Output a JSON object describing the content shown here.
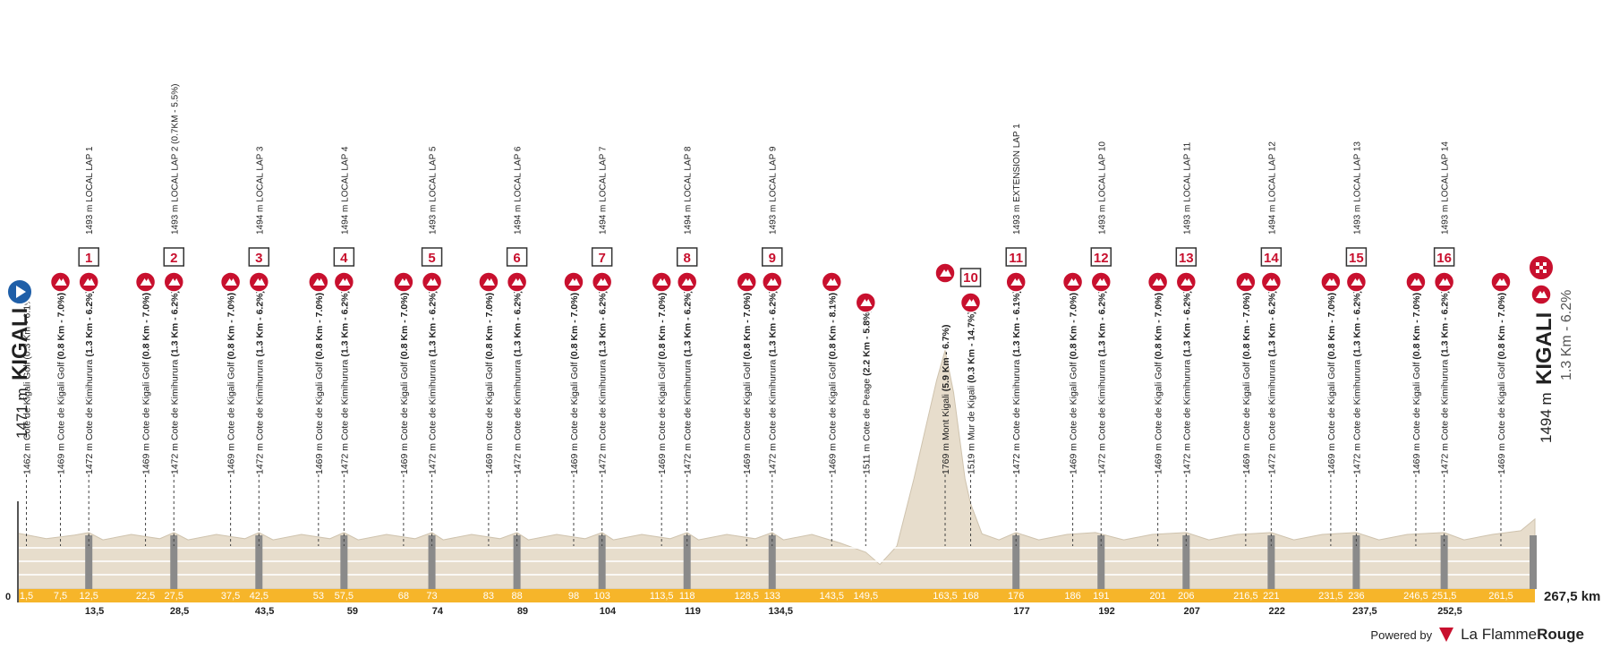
{
  "chart_data": {
    "type": "area",
    "title": "",
    "start": {
      "name": "KIGALI",
      "altitude": "1471 m",
      "note": "0.3Km - 6.1%"
    },
    "finish": {
      "name": "KIGALI",
      "altitude": "1494 m",
      "climb": "1.3 Km - 6.2%"
    },
    "total_distance": "267,5 km",
    "x_start_label": "0",
    "xlim": [
      0,
      267.5
    ],
    "elevation_profile": {
      "x": [
        0,
        5,
        10,
        12.5,
        15,
        20,
        25,
        27.5,
        30,
        35,
        40,
        42.5,
        45,
        50,
        55,
        57.5,
        60,
        65,
        70,
        73,
        75,
        80,
        85,
        88,
        90,
        95,
        100,
        103,
        105,
        110,
        115,
        118,
        120,
        125,
        130,
        133,
        135,
        140,
        145,
        149.5,
        152,
        155,
        158,
        160,
        162,
        163.5,
        165,
        167,
        168,
        170,
        173,
        176,
        180,
        185,
        190,
        195,
        200,
        206,
        210,
        215,
        221,
        225,
        230,
        236,
        240,
        245,
        251.5,
        255,
        260,
        265,
        267.5
      ],
      "y": [
        1471,
        1462,
        1468,
        1472,
        1460,
        1469,
        1462,
        1472,
        1460,
        1469,
        1462,
        1472,
        1460,
        1469,
        1462,
        1472,
        1460,
        1469,
        1462,
        1472,
        1460,
        1469,
        1462,
        1472,
        1460,
        1469,
        1462,
        1472,
        1460,
        1469,
        1462,
        1472,
        1460,
        1469,
        1462,
        1472,
        1460,
        1469,
        1455,
        1440,
        1420,
        1450,
        1560,
        1640,
        1720,
        1769,
        1700,
        1560,
        1519,
        1470,
        1460,
        1472,
        1460,
        1469,
        1472,
        1460,
        1469,
        1472,
        1460,
        1469,
        1472,
        1460,
        1469,
        1472,
        1460,
        1469,
        1472,
        1460,
        1469,
        1475,
        1494
      ]
    },
    "ylim": [
      1380,
      1800
    ],
    "km_markers_top": [
      "1,5",
      "7,5",
      "12,5",
      "22,5",
      "27,5",
      "37,5",
      "42,5",
      "53",
      "57,5",
      "68",
      "73",
      "83",
      "88",
      "98",
      "103",
      "113,5",
      "118",
      "128,5",
      "133",
      "143,5",
      "149,5",
      "163,5",
      "168",
      "176",
      "186",
      "191",
      "201",
      "206",
      "216,5",
      "221",
      "231,5",
      "236",
      "246,5",
      "251,5",
      "261,5"
    ],
    "km_markers_bottom": [
      "13,5",
      "28,5",
      "43,5",
      "59",
      "74",
      "89",
      "104",
      "119",
      "134,5",
      "177",
      "192",
      "207",
      "222",
      "237,5",
      "252,5"
    ],
    "climbs": [
      {
        "km": 1.5,
        "label": "1462 m Cote de Kigali Golf (0.3 Km - 6.1%)"
      },
      {
        "km": 7.5,
        "name": "1469 m Cote de Kigali Golf",
        "detail": "(0.8 Km - 7.0%)"
      },
      {
        "km": 12.5,
        "name": "1472 m Cote de Kimihurura",
        "detail": "(1.3 Km - 6.2%)"
      },
      {
        "km": 22.5,
        "name": "1469 m Cote de Kigali Golf",
        "detail": "(0.8 Km - 7.0%)"
      },
      {
        "km": 27.5,
        "name": "1472 m Cote de Kimihurura",
        "detail": "(1.3 Km - 6.2%)"
      },
      {
        "km": 37.5,
        "name": "1469 m Cote de Kigali Golf",
        "detail": "(0.8 Km - 7.0%)"
      },
      {
        "km": 42.5,
        "name": "1472 m Cote de Kimihurura",
        "detail": "(1.3 Km - 6.2%)"
      },
      {
        "km": 53,
        "name": "1469 m Cote de Kigali Golf",
        "detail": "(0.8 Km - 7.0%)"
      },
      {
        "km": 57.5,
        "name": "1472 m Cote de Kimihurura",
        "detail": "(1.3 Km - 6.2%)"
      },
      {
        "km": 68,
        "name": "1469 m Cote de Kigali Golf",
        "detail": "(0.8 Km - 7.0%)"
      },
      {
        "km": 73,
        "name": "1472 m Cote de Kimihurura",
        "detail": "(1.3 Km - 6.2%)"
      },
      {
        "km": 83,
        "name": "1469 m Cote de Kigali Golf",
        "detail": "(0.8 Km - 7.0%)"
      },
      {
        "km": 88,
        "name": "1472 m Cote de Kimihurura",
        "detail": "(1.3 Km - 6.2%)"
      },
      {
        "km": 98,
        "name": "1469 m Cote de Kigali Golf",
        "detail": "(0.8 Km - 7.0%)"
      },
      {
        "km": 103,
        "name": "1472 m Cote de Kimihurura",
        "detail": "(1.3 Km - 6.2%)"
      },
      {
        "km": 113.5,
        "name": "1469 m Cote de Kigali Golf",
        "detail": "(0.8 Km - 7.0%)"
      },
      {
        "km": 118,
        "name": "1472 m Cote de Kimihurura",
        "detail": "(1.3 Km - 6.2%)"
      },
      {
        "km": 128.5,
        "name": "1469 m Cote de Kigali Golf",
        "detail": "(0.8 Km - 7.0%)"
      },
      {
        "km": 133,
        "name": "1472 m Cote de Kimihurura",
        "detail": "(1.3 Km - 6.2%)"
      },
      {
        "km": 143.5,
        "name": "1469 m Cote de Kigali Golf",
        "detail": "(0.8 Km - 8.1%)"
      },
      {
        "km": 149.5,
        "name": "1511 m Cote de Peage",
        "detail": "(2.2 Km - 5.8%)"
      },
      {
        "km": 163.5,
        "name": "1769 m Mont Kigali",
        "detail": "(5.9 Km - 6.7%)"
      },
      {
        "km": 168,
        "name": "1519 m Mur de Kigali",
        "detail": "(0.3 Km - 14.7%)"
      },
      {
        "km": 176,
        "name": "1472 m Cote de Kimihurura",
        "detail": "(1.3 Km - 6.1%)"
      },
      {
        "km": 186,
        "name": "1469 m Cote de Kigali Golf",
        "detail": "(0.8 Km - 7.0%)"
      },
      {
        "km": 191,
        "name": "1472 m Cote de Kimihurura",
        "detail": "(1.3 Km - 6.2%)"
      },
      {
        "km": 201,
        "name": "1469 m Cote de Kigali Golf",
        "detail": "(0.8 Km - 7.0%)"
      },
      {
        "km": 206,
        "name": "1472 m Cote de Kimihurura",
        "detail": "(1.3 Km - 6.2%)"
      },
      {
        "km": 216.5,
        "name": "1469 m Cote de Kigali Golf",
        "detail": "(0.8 Km - 7.0%)"
      },
      {
        "km": 221,
        "name": "1472 m Cote de Kimihurura",
        "detail": "(1.3 Km - 6.2%)"
      },
      {
        "km": 231.5,
        "name": "1469 m Cote de Kigali Golf",
        "detail": "(0.8 Km - 7.0%)"
      },
      {
        "km": 236,
        "name": "1472 m Cote de Kimihurura",
        "detail": "(1.3 Km - 6.2%)"
      },
      {
        "km": 246.5,
        "name": "1469 m Cote de Kigali Golf",
        "detail": "(0.8 Km - 7.0%)"
      },
      {
        "km": 251.5,
        "name": "1472 m Cote de Kimihurura",
        "detail": "(1.3 Km - 6.2%)"
      },
      {
        "km": 261.5,
        "name": "1469 m Cote de Kigali Golf",
        "detail": "(0.8 Km - 7.0%)"
      }
    ],
    "laps": [
      {
        "num": "1",
        "km": 12.5,
        "label": "1493 m LOCAL LAP 1"
      },
      {
        "num": "2",
        "km": 27.5,
        "label": "1493 m LOCAL LAP 2 (0.7KM - 5.5%)"
      },
      {
        "num": "3",
        "km": 42.5,
        "label": "1494 m LOCAL LAP 3"
      },
      {
        "num": "4",
        "km": 57.5,
        "label": "1494 m LOCAL LAP 4"
      },
      {
        "num": "5",
        "km": 73,
        "label": "1493 m LOCAL LAP 5"
      },
      {
        "num": "6",
        "km": 88,
        "label": "1494 m LOCAL LAP 6"
      },
      {
        "num": "7",
        "km": 103,
        "label": "1494 m LOCAL LAP 7"
      },
      {
        "num": "8",
        "km": 118,
        "label": "1494 m LOCAL LAP 8"
      },
      {
        "num": "9",
        "km": 133,
        "label": "1493 m LOCAL LAP 9"
      },
      {
        "num": "10",
        "km": 168,
        "label": ""
      },
      {
        "num": "11",
        "km": 176,
        "label": "1493 m EXTENSION LAP 1"
      },
      {
        "num": "12",
        "km": 191,
        "label": "1493 m LOCAL LAP 10"
      },
      {
        "num": "13",
        "km": 206,
        "label": "1493 m LOCAL LAP 11"
      },
      {
        "num": "14",
        "km": 221,
        "label": "1494 m LOCAL LAP 12"
      },
      {
        "num": "15",
        "km": 236,
        "label": "1493 m LOCAL LAP 13"
      },
      {
        "num": "16",
        "km": 251.5,
        "label": "1493 m LOCAL LAP 14"
      }
    ],
    "colors": {
      "band": "#f6b52a",
      "terrain": "#e7ddcc",
      "climb_marker": "#c8102e",
      "start_marker": "#1f5fa8",
      "lap_box_border": "#333333"
    }
  },
  "brand": {
    "powered": "Powered by",
    "name_light": "La Flamme",
    "name_bold": "Rouge"
  }
}
